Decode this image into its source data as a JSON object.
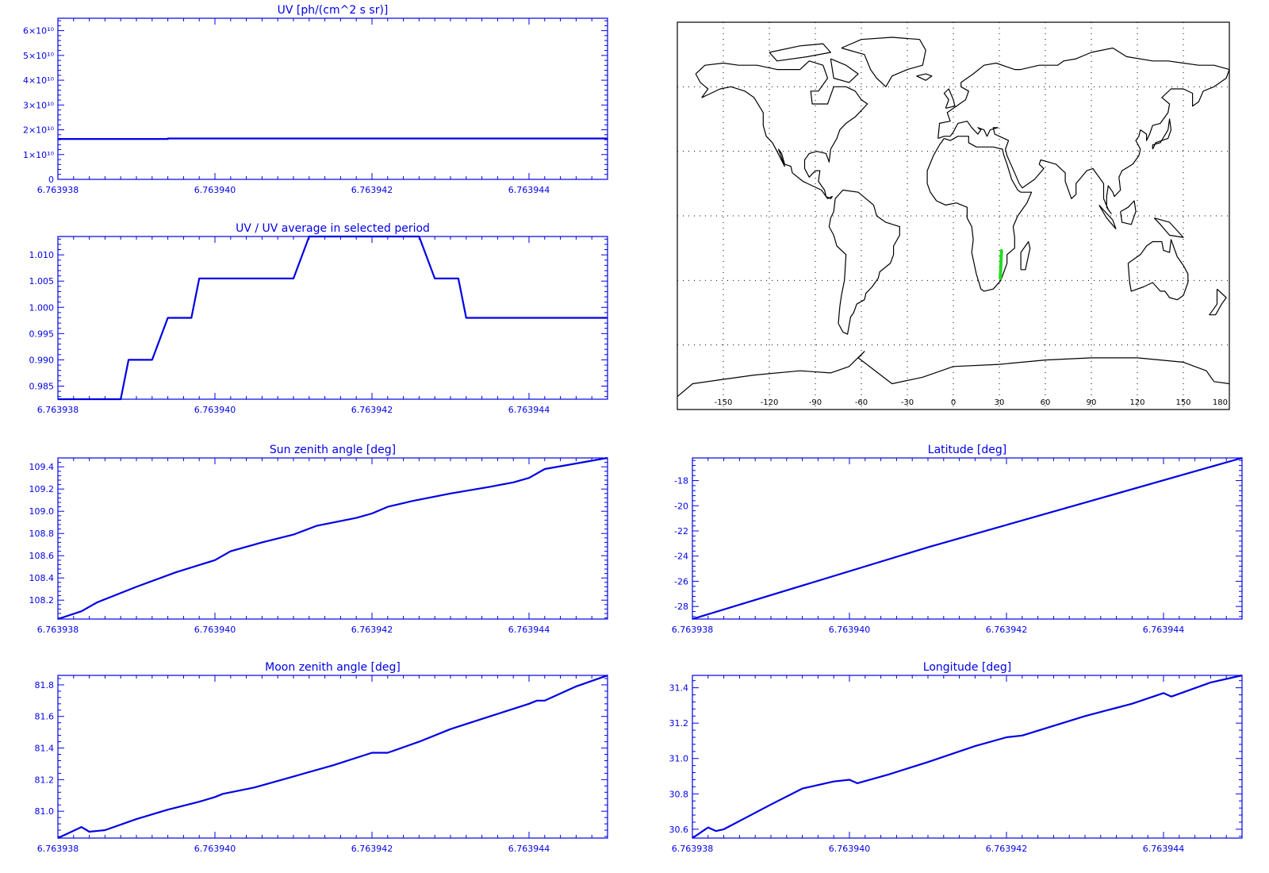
{
  "colors": {
    "axis": "#0000e6",
    "series": "#0000e6",
    "track": "#22dd22",
    "coast": "#000000",
    "grid": "#000000"
  },
  "chart_data": [
    {
      "id": "uv",
      "type": "line",
      "title": "UV [ph/(cm^2 s sr)]",
      "x_ticks": [
        "6.763938",
        "6.763940",
        "6.763942",
        "6.763944"
      ],
      "xlim": [
        6.763938,
        6.763945
      ],
      "y_ticks": [
        "0",
        "1×10¹⁰",
        "2×10¹⁰",
        "3×10¹⁰",
        "4×10¹⁰",
        "5×10¹⁰",
        "6×10¹⁰"
      ],
      "ylim": [
        0,
        65000000000.0
      ],
      "series": [
        {
          "x": [
            6.763938,
            6.7639394,
            6.7639394,
            6.763945
          ],
          "y": [
            16300000000.0,
            16300000000.0,
            16500000000.0,
            16500000000.0
          ]
        }
      ]
    },
    {
      "id": "uv_ratio",
      "type": "line",
      "title": "UV / UV average in selected period",
      "x_ticks": [
        "6.763938",
        "6.763940",
        "6.763942",
        "6.763944"
      ],
      "xlim": [
        6.763938,
        6.763945
      ],
      "y_ticks": [
        "0.985",
        "0.990",
        "0.995",
        "1.000",
        "1.005",
        "1.010"
      ],
      "ylim": [
        0.9825,
        1.0135
      ],
      "series": [
        {
          "x": [
            6.763938,
            6.7639388,
            6.7639389,
            6.7639392,
            6.7639394,
            6.7639397,
            6.7639398,
            6.763941,
            6.7639412,
            6.7639426,
            6.7639428,
            6.7639431,
            6.7639432,
            6.763945
          ],
          "y": [
            0.9825,
            0.9825,
            0.99,
            0.99,
            0.998,
            0.998,
            1.0055,
            1.0055,
            1.0135,
            1.0135,
            1.0055,
            1.0055,
            0.998,
            0.998
          ]
        }
      ]
    },
    {
      "id": "sun_zenith",
      "type": "line",
      "title": "Sun zenith angle [deg]",
      "x_ticks": [
        "6.763938",
        "6.763940",
        "6.763942",
        "6.763944"
      ],
      "xlim": [
        6.763938,
        6.763945
      ],
      "y_ticks": [
        "108.2",
        "108.4",
        "108.6",
        "108.8",
        "109.0",
        "109.2",
        "109.4"
      ],
      "ylim": [
        108.03,
        109.48
      ],
      "series": [
        {
          "x": [
            6.763938,
            6.7639383,
            6.7639385,
            6.763939,
            6.7639395,
            6.76394,
            6.7639402,
            6.7639406,
            6.763941,
            6.7639413,
            6.7639418,
            6.763942,
            6.7639422,
            6.7639425,
            6.763943,
            6.7639435,
            6.7639438,
            6.763944,
            6.7639442,
            6.7639446,
            6.763945
          ],
          "y": [
            108.03,
            108.1,
            108.18,
            108.32,
            108.45,
            108.56,
            108.64,
            108.72,
            108.79,
            108.87,
            108.94,
            108.98,
            109.04,
            109.09,
            109.16,
            109.22,
            109.26,
            109.3,
            109.38,
            109.43,
            109.48
          ]
        }
      ]
    },
    {
      "id": "latitude",
      "type": "line",
      "title": "Latitude [deg]",
      "x_ticks": [
        "6.763938",
        "6.763940",
        "6.763942",
        "6.763944"
      ],
      "xlim": [
        6.763938,
        6.763945
      ],
      "y_ticks": [
        "-28",
        "-26",
        "-24",
        "-22",
        "-20",
        "-18"
      ],
      "ylim": [
        -29.0,
        -16.2
      ],
      "series": [
        {
          "x": [
            6.763938,
            6.763941,
            6.763945
          ],
          "y": [
            -29.0,
            -23.3,
            -16.2
          ]
        }
      ]
    },
    {
      "id": "moon_zenith",
      "type": "line",
      "title": "Moon zenith angle [deg]",
      "x_ticks": [
        "6.763938",
        "6.763940",
        "6.763942",
        "6.763944"
      ],
      "xlim": [
        6.763938,
        6.763945
      ],
      "y_ticks": [
        "81.0",
        "81.2",
        "81.4",
        "81.6",
        "81.8"
      ],
      "ylim": [
        80.83,
        81.86
      ],
      "series": [
        {
          "x": [
            6.763938,
            6.7639383,
            6.7639384,
            6.7639386,
            6.763939,
            6.7639394,
            6.7639398,
            6.76394,
            6.7639401,
            6.7639405,
            6.763941,
            6.7639415,
            6.763942,
            6.7639422,
            6.7639426,
            6.763943,
            6.7639435,
            6.763944,
            6.7639441,
            6.7639442,
            6.7639446,
            6.763945
          ],
          "y": [
            80.83,
            80.9,
            80.87,
            80.88,
            80.95,
            81.01,
            81.06,
            81.09,
            81.11,
            81.15,
            81.22,
            81.29,
            81.37,
            81.37,
            81.44,
            81.52,
            81.6,
            81.68,
            81.7,
            81.7,
            81.79,
            81.86
          ]
        }
      ]
    },
    {
      "id": "longitude",
      "type": "line",
      "title": "Longitude [deg]",
      "x_ticks": [
        "6.763938",
        "6.763940",
        "6.763942",
        "6.763944"
      ],
      "xlim": [
        6.763938,
        6.763945
      ],
      "y_ticks": [
        "30.6",
        "30.8",
        "31.0",
        "31.2",
        "31.4"
      ],
      "ylim": [
        30.55,
        31.47
      ],
      "series": [
        {
          "x": [
            6.763938,
            6.7639382,
            6.7639383,
            6.7639384,
            6.7639387,
            6.763939,
            6.7639394,
            6.7639398,
            6.76394,
            6.7639401,
            6.7639405,
            6.763941,
            6.7639416,
            6.763942,
            6.7639422,
            6.763943,
            6.7639436,
            6.763944,
            6.7639441,
            6.7639446,
            6.763945
          ],
          "y": [
            30.55,
            30.61,
            30.59,
            30.6,
            30.67,
            30.74,
            30.83,
            30.87,
            30.88,
            30.86,
            30.91,
            30.98,
            31.07,
            31.12,
            31.13,
            31.24,
            31.31,
            31.37,
            31.35,
            31.43,
            31.47
          ]
        }
      ]
    }
  ],
  "map": {
    "x_ticks": [
      "-150",
      "-120",
      "-90",
      "-60",
      "-30",
      "0",
      "30",
      "60",
      "90",
      "120",
      "150",
      "180"
    ],
    "lon_range": [
      -180,
      180
    ],
    "lat_range": [
      -90,
      90
    ],
    "track": {
      "lon": [
        31.4,
        30.6
      ],
      "lat": [
        -16.2,
        -29.0
      ]
    }
  }
}
